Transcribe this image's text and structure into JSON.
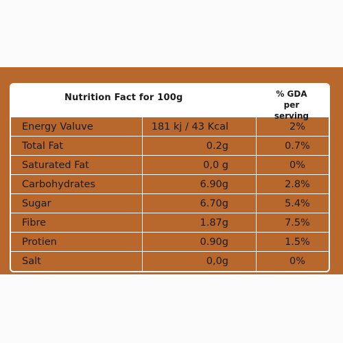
{
  "header": {
    "title": "Nutrition Fact for 100g",
    "gda_line1": "% GDA",
    "gda_line2": "per serving"
  },
  "rows": [
    {
      "name": "Energy Valuve",
      "amount": "181 kj / 43 Kcal",
      "gda": "2%"
    },
    {
      "name": "Total Fat",
      "amount": "0.2g",
      "gda": "0.7%"
    },
    {
      "name": "Saturated Fat",
      "amount": "0,0 g",
      "gda": "0%"
    },
    {
      "name": "Carbohydrates",
      "amount": "6.90g",
      "gda": "2.8%"
    },
    {
      "name": "Sugar",
      "amount": "6.70g",
      "gda": "5.4%"
    },
    {
      "name": "Fibre",
      "amount": "1.87g",
      "gda": "7.5%"
    },
    {
      "name": "Protien",
      "amount": "0.90g",
      "gda": "1.5%"
    },
    {
      "name": "Salt",
      "amount": "0,0g",
      "gda": "0%"
    }
  ],
  "colors": {
    "panel": "#b8672d",
    "text": "#1a1a1a",
    "border": "#ffffff"
  }
}
